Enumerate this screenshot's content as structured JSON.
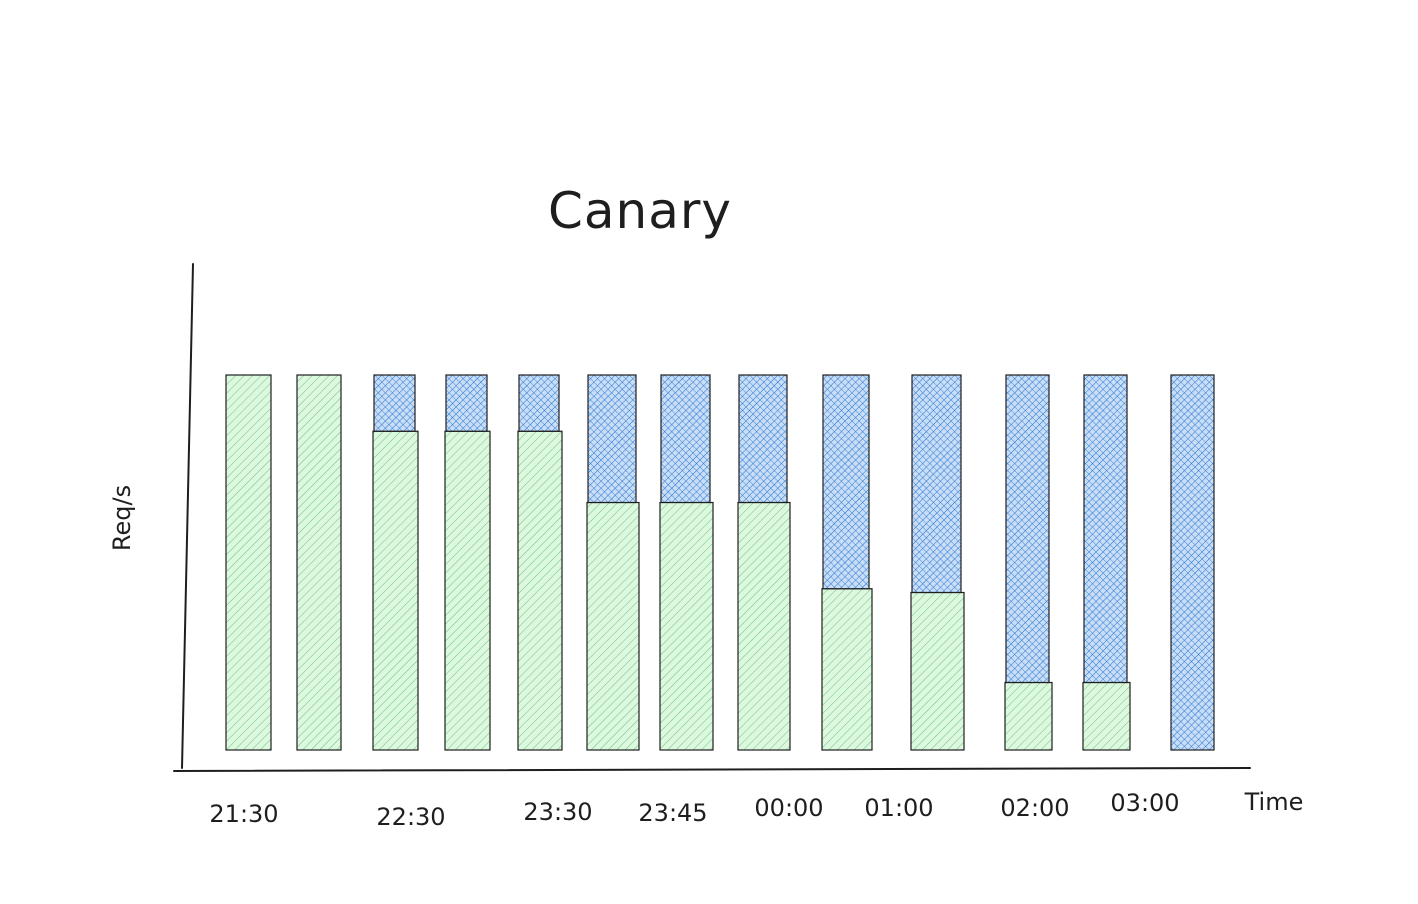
{
  "chart_data": {
    "type": "bar",
    "stacked": true,
    "title": "Canary",
    "xlabel": "Time",
    "ylabel": "Req/s",
    "ylim": [
      0,
      100
    ],
    "grid": false,
    "legend": "none",
    "x_tick_labels": [
      "21:30",
      "22:30",
      "23:30",
      "23:45",
      "00:00",
      "01:00",
      "02:00",
      "03:00"
    ],
    "bars": [
      {
        "green": 100,
        "blue": 0
      },
      {
        "green": 100,
        "blue": 0
      },
      {
        "green": 85,
        "blue": 15
      },
      {
        "green": 85,
        "blue": 15
      },
      {
        "green": 85,
        "blue": 15
      },
      {
        "green": 66,
        "blue": 34
      },
      {
        "green": 66,
        "blue": 34
      },
      {
        "green": 66,
        "blue": 34
      },
      {
        "green": 43,
        "blue": 57
      },
      {
        "green": 42,
        "blue": 58
      },
      {
        "green": 18,
        "blue": 82
      },
      {
        "green": 18,
        "blue": 82
      },
      {
        "green": 0,
        "blue": 100
      }
    ],
    "colors": {
      "green_fill": "#b2f2bb",
      "green_hatch": "#6dbf7a",
      "blue_fill": "#a5c8f0",
      "blue_hatch": "#1c6fd1",
      "stroke": "#1e1e1e"
    }
  }
}
